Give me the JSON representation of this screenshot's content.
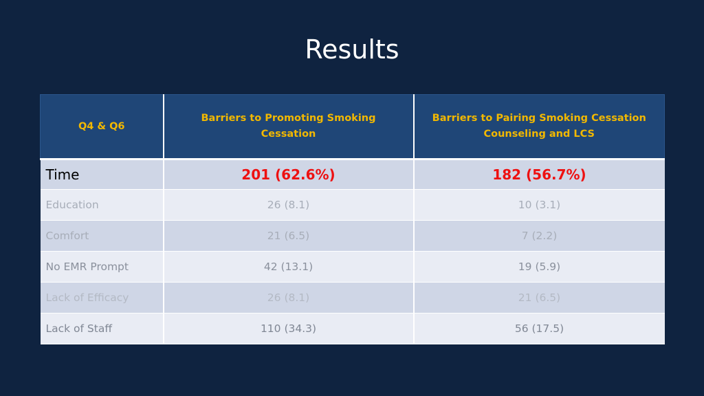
{
  "title": "Results",
  "table": {
    "headers": [
      "Q4 & Q6",
      "Barriers to Promoting Smoking Cessation",
      "Barriers to Pairing Smoking Cessation Counseling and LCS"
    ],
    "rows": [
      {
        "label": "Time",
        "promoting": "201 (62.6%)",
        "pairing": "182 (56.7%)"
      },
      {
        "label": "Education",
        "promoting": "26 (8.1)",
        "pairing": "10 (3.1)"
      },
      {
        "label": "Comfort",
        "promoting": "21 (6.5)",
        "pairing": "7 (2.2)"
      },
      {
        "label": "No EMR Prompt",
        "promoting": "42 (13.1)",
        "pairing": "19 (5.9)"
      },
      {
        "label": "Lack of Efficacy",
        "promoting": "26 (8.1)",
        "pairing": "21 (6.5)"
      },
      {
        "label": "Lack of Staff",
        "promoting": "110 (34.3)",
        "pairing": "56 (17.5)"
      }
    ]
  },
  "colors": {
    "background": "#0f2340",
    "header_fill": "#1f4677",
    "header_text": "#f2b800",
    "highlight_value": "#ee1111"
  }
}
